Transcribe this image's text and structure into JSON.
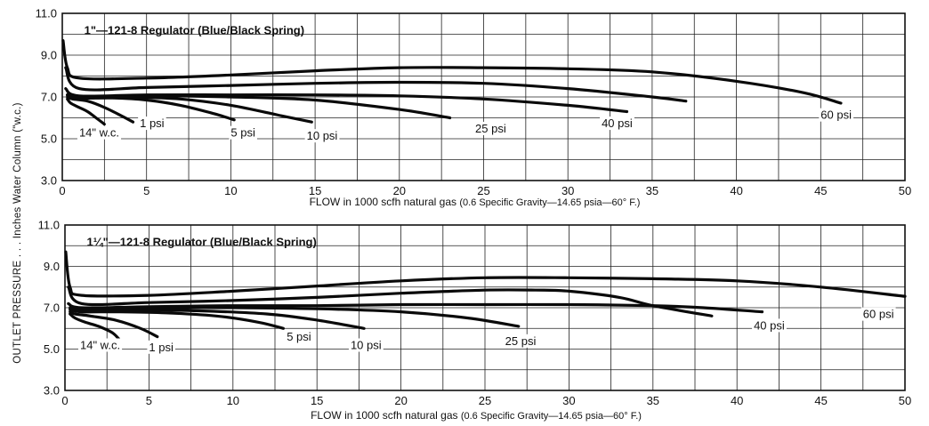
{
  "page": {
    "ylabel": "OUTLET PRESSURE . . . Inches Water Column (\"w.c.)"
  },
  "chart_data": [
    {
      "type": "line",
      "title": "1\"—121-8 Regulator (Blue/Black Spring)",
      "xlabel_main": "FLOW in 1000 scfh natural gas",
      "xlabel_note": "(0.6 Specific Gravity—14.65 psia—60° F.)",
      "xlim": [
        0,
        50
      ],
      "ylim": [
        3.0,
        11.0
      ],
      "xticks": [
        "0",
        "5",
        "10",
        "15",
        "20",
        "25",
        "30",
        "35",
        "40",
        "45",
        "50"
      ],
      "yticks": [
        "3.0",
        "5.0",
        "7.0",
        "9.0",
        "11.0"
      ],
      "grid": true,
      "series": [
        {
          "name": "14\" w.c.",
          "x": [
            0.3,
            0.5,
            1.0,
            1.5,
            2.0,
            2.5
          ],
          "y": [
            6.9,
            6.7,
            6.5,
            6.3,
            6.0,
            5.7
          ]
        },
        {
          "name": "1 psi",
          "x": [
            0.3,
            0.6,
            1.5,
            2.5,
            3.5,
            4.2
          ],
          "y": [
            7.0,
            6.9,
            6.8,
            6.5,
            6.1,
            5.8
          ]
        },
        {
          "name": "5 psi",
          "x": [
            0.3,
            1,
            3,
            5,
            7,
            9,
            10.2
          ],
          "y": [
            7.1,
            6.95,
            6.95,
            6.85,
            6.6,
            6.2,
            5.9
          ]
        },
        {
          "name": "10 psi",
          "x": [
            0.3,
            1,
            4,
            7,
            10,
            13,
            14.8
          ],
          "y": [
            7.1,
            7.0,
            7.0,
            6.9,
            6.6,
            6.1,
            5.8
          ]
        },
        {
          "name": "25 psi",
          "x": [
            0.3,
            1,
            5,
            10,
            15,
            20,
            23
          ],
          "y": [
            7.1,
            7.0,
            7.05,
            7.0,
            6.85,
            6.4,
            6.0
          ]
        },
        {
          "name": "40 psi",
          "x": [
            0.2,
            1,
            5,
            10,
            15,
            20,
            25,
            30,
            33.5
          ],
          "y": [
            7.4,
            7.05,
            7.1,
            7.1,
            7.1,
            7.05,
            6.9,
            6.6,
            6.3
          ]
        },
        {
          "name": "",
          "x": [
            0.2,
            1,
            5,
            10,
            15,
            20,
            25,
            30,
            35,
            37
          ],
          "y": [
            8.4,
            7.4,
            7.45,
            7.55,
            7.65,
            7.7,
            7.65,
            7.4,
            7.0,
            6.8
          ]
        },
        {
          "name": "60 psi",
          "x": [
            0.05,
            0.3,
            1,
            5,
            10,
            15,
            20,
            25,
            30,
            35,
            40,
            44,
            46.2
          ],
          "y": [
            9.7,
            8.4,
            7.9,
            7.9,
            8.05,
            8.25,
            8.4,
            8.4,
            8.35,
            8.2,
            7.75,
            7.2,
            6.7
          ]
        }
      ],
      "labels": [
        {
          "text": "14\" w.c.",
          "x": 1.0,
          "y": 5.1
        },
        {
          "text": "1 psi",
          "x": 4.6,
          "y": 5.55
        },
        {
          "text": "5 psi",
          "x": 10.0,
          "y": 5.1
        },
        {
          "text": "10 psi",
          "x": 14.5,
          "y": 4.95
        },
        {
          "text": "25 psi",
          "x": 24.5,
          "y": 5.3
        },
        {
          "text": "40 psi",
          "x": 32.0,
          "y": 5.55
        },
        {
          "text": "60 psi",
          "x": 45.0,
          "y": 5.95
        }
      ]
    },
    {
      "type": "line",
      "title": "1¼\"—121-8 Regulator (Blue/Black Spring)",
      "xlabel_main": "FLOW in 1000 scfh natural gas",
      "xlabel_note": "(0.6 Specific Gravity—14.65 psia—60° F.)",
      "xlim": [
        0,
        50
      ],
      "ylim": [
        3.0,
        11.0
      ],
      "xticks": [
        "0",
        "5",
        "10",
        "15",
        "20",
        "25",
        "30",
        "35",
        "40",
        "45",
        "50"
      ],
      "yticks": [
        "3.0",
        "5.0",
        "7.0",
        "9.0",
        "11.0"
      ],
      "grid": true,
      "series": [
        {
          "name": "14\" w.c.",
          "x": [
            0.3,
            0.6,
            1.2,
            2.0,
            2.8,
            3.2
          ],
          "y": [
            6.7,
            6.5,
            6.3,
            6.1,
            5.8,
            5.5
          ]
        },
        {
          "name": "1 psi",
          "x": [
            0.3,
            0.6,
            1.5,
            3.0,
            4.5,
            5.5
          ],
          "y": [
            6.8,
            6.7,
            6.6,
            6.4,
            6.0,
            5.6
          ]
        },
        {
          "name": "5 psi",
          "x": [
            0.3,
            1,
            3,
            6,
            9,
            11.5,
            13
          ],
          "y": [
            6.9,
            6.8,
            6.8,
            6.75,
            6.6,
            6.3,
            6.0
          ]
        },
        {
          "name": "10 psi",
          "x": [
            0.3,
            1,
            4,
            8,
            12,
            15,
            17.8
          ],
          "y": [
            6.95,
            6.9,
            6.9,
            6.85,
            6.7,
            6.4,
            6.0
          ]
        },
        {
          "name": "25 psi",
          "x": [
            0.3,
            1,
            5,
            10,
            15,
            20,
            24,
            27
          ],
          "y": [
            7.0,
            6.95,
            7.0,
            7.0,
            6.95,
            6.8,
            6.5,
            6.1
          ]
        },
        {
          "name": "40 psi",
          "x": [
            0.2,
            1,
            5,
            10,
            15,
            20,
            25,
            30,
            35,
            38,
            41.5
          ],
          "y": [
            7.2,
            7.0,
            7.05,
            7.1,
            7.1,
            7.15,
            7.15,
            7.15,
            7.1,
            7.0,
            6.8
          ]
        },
        {
          "name": "",
          "x": [
            0.2,
            1,
            5,
            10,
            15,
            20,
            25,
            28,
            30,
            33,
            35,
            38.5
          ],
          "y": [
            8.0,
            7.2,
            7.25,
            7.35,
            7.5,
            7.7,
            7.85,
            7.85,
            7.8,
            7.5,
            7.1,
            6.6
          ]
        },
        {
          "name": "60 psi",
          "x": [
            0.05,
            0.3,
            1,
            5,
            10,
            15,
            20,
            25,
            30,
            35,
            40,
            45,
            50
          ],
          "y": [
            9.7,
            8.0,
            7.6,
            7.6,
            7.8,
            8.05,
            8.3,
            8.45,
            8.45,
            8.4,
            8.3,
            8.0,
            7.55
          ]
        }
      ],
      "labels": [
        {
          "text": "14\" w.c.",
          "x": 0.9,
          "y": 5.0
        },
        {
          "text": "1 psi",
          "x": 5.0,
          "y": 4.9
        },
        {
          "text": "5 psi",
          "x": 13.2,
          "y": 5.4
        },
        {
          "text": "10 psi",
          "x": 17.0,
          "y": 5.0
        },
        {
          "text": "25 psi",
          "x": 26.2,
          "y": 5.2
        },
        {
          "text": "40 psi",
          "x": 41.0,
          "y": 5.95
        },
        {
          "text": "60 psi",
          "x": 47.5,
          "y": 6.5
        }
      ]
    }
  ]
}
